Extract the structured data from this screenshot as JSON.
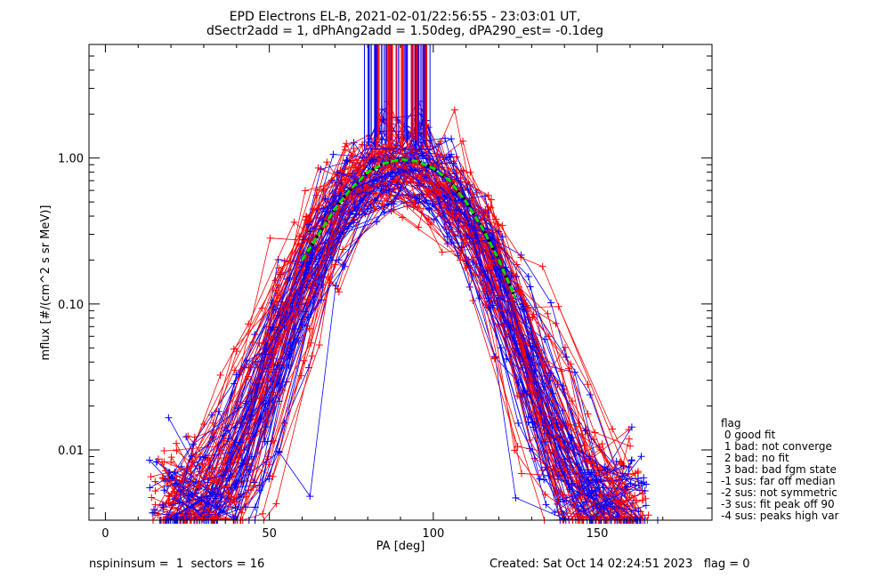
{
  "chart_data": {
    "type": "scatter",
    "title_line1": "EPD Electrons EL-B, 2021-02-01/22:56:55 - 23:03:01 UT,",
    "title_line2": "dSectr2add = 1, dPhAng2add = 1.50deg, dPA290_est=  -0.1deg",
    "xlabel": "PA [deg]",
    "ylabel": "mflux [#/(cm^2 s sr MeV)]",
    "xlim": [
      -5,
      185
    ],
    "ylim": [
      0.0033,
      6.0
    ],
    "y_scale": "log",
    "x_ticks": [
      0,
      50,
      100,
      150
    ],
    "x_tick_labels": [
      "0",
      "50",
      "100",
      "150"
    ],
    "y_ticks": [
      0.01,
      0.1,
      1.0
    ],
    "y_tick_labels": [
      "0.01",
      "0.10",
      "1.00"
    ],
    "series_colors": {
      "a": "#ff0000",
      "b": "#0000ff",
      "fit": "#00e000",
      "fit_edge": "#000000"
    },
    "fit_curve": {
      "x": [
        60,
        65,
        70,
        75,
        80,
        85,
        90,
        95,
        100,
        105,
        110,
        115,
        120,
        125
      ],
      "y": [
        0.2,
        0.3,
        0.45,
        0.62,
        0.8,
        0.92,
        0.98,
        0.95,
        0.85,
        0.7,
        0.5,
        0.33,
        0.2,
        0.11
      ]
    },
    "legend": {
      "title": "flag",
      "items": [
        " 0 good fit",
        " 1 bad: not converge",
        " 2 bad: no fit",
        " 3 bad: bad fgm state",
        "-1 sus: far off median",
        "-2 sus: not symmetric",
        "-3 sus: fit peak off 90",
        "-4 sus: peaks high var"
      ]
    }
  },
  "footer": {
    "left": "nspininsum =  1  sectors = 16",
    "right": "Created: Sat Oct 14 02:24:51 2023   flag = 0"
  }
}
